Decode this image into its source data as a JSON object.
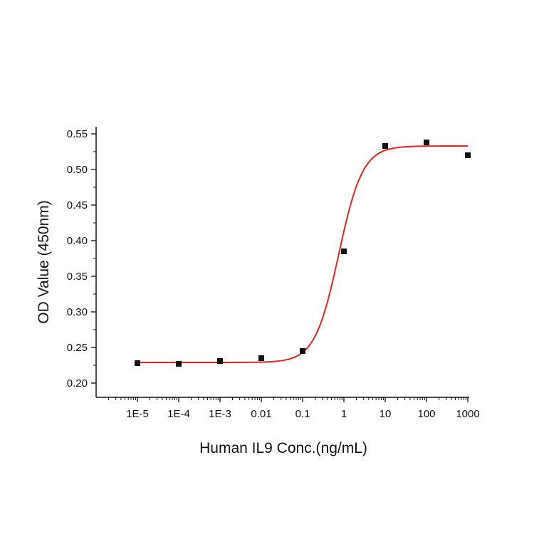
{
  "chart_data": {
    "type": "scatter",
    "xlabel": "Human IL9 Conc.(ng/mL)",
    "ylabel": "OD Value (450nm)",
    "x_scale": "log",
    "xlim": [
      1e-06,
      1000
    ],
    "ylim": [
      0.18,
      0.56
    ],
    "x_ticks": [
      {
        "value": 1e-05,
        "label": "1E-5"
      },
      {
        "value": 0.0001,
        "label": "1E-4"
      },
      {
        "value": 0.001,
        "label": "1E-3"
      },
      {
        "value": 0.01,
        "label": "0.01"
      },
      {
        "value": 0.1,
        "label": "0.1"
      },
      {
        "value": 1,
        "label": "1"
      },
      {
        "value": 10,
        "label": "10"
      },
      {
        "value": 100,
        "label": "100"
      },
      {
        "value": 1000,
        "label": "1000"
      }
    ],
    "y_ticks": [
      {
        "value": 0.2,
        "label": "0.20"
      },
      {
        "value": 0.25,
        "label": "0.25"
      },
      {
        "value": 0.3,
        "label": "0.30"
      },
      {
        "value": 0.35,
        "label": "0.35"
      },
      {
        "value": 0.4,
        "label": "0.40"
      },
      {
        "value": 0.45,
        "label": "0.45"
      },
      {
        "value": 0.5,
        "label": "0.50"
      },
      {
        "value": 0.55,
        "label": "0.55"
      }
    ],
    "grid": false,
    "series": [
      {
        "marker": "square",
        "color": "#111111",
        "x": [
          1e-05,
          0.0001,
          0.001,
          0.01,
          0.1,
          1,
          10,
          100,
          1000
        ],
        "y": [
          0.228,
          0.227,
          0.231,
          0.235,
          0.245,
          0.385,
          0.533,
          0.538,
          0.52
        ]
      }
    ],
    "fit_curve": {
      "type": "sigmoid",
      "color": "#e8231f",
      "bottom": 0.229,
      "top": 0.533,
      "ec50": 0.75,
      "hill": 1.5,
      "x_range": [
        1e-05,
        1000
      ]
    }
  }
}
